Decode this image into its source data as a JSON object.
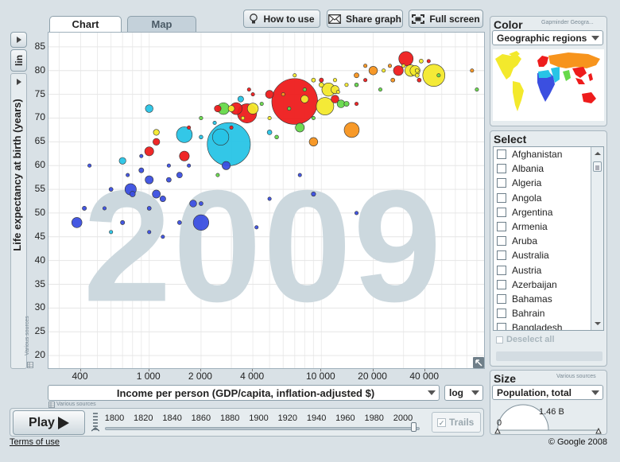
{
  "tabs": [
    {
      "label": "Chart",
      "active": true
    },
    {
      "label": "Map",
      "active": false
    }
  ],
  "toolbar": {
    "how_to_use": "How to use",
    "share_graph": "Share graph",
    "full_screen": "Full screen"
  },
  "y_scale_button": "lin",
  "x_scale_select": "log",
  "x_axis_select": "Income per person (GDP/capita, inflation-adjusted $)",
  "y_axis_label": "Life expectancy at birth (years)",
  "various_sources_y": "Various sources",
  "various_sources_x": "Various sources",
  "color_panel": {
    "title": "Color",
    "credit": "Gapminder Geogra...",
    "select": "Geographic regions",
    "region_colors": [
      "#3b4fe0",
      "#28c4e6",
      "#66d94a",
      "#f3e92c",
      "#f7941d",
      "#ee1c1c"
    ]
  },
  "select_panel": {
    "title": "Select",
    "countries": [
      "Afghanistan",
      "Albania",
      "Algeria",
      "Angola",
      "Argentina",
      "Armenia",
      "Aruba",
      "Australia",
      "Austria",
      "Azerbaijan",
      "Bahamas",
      "Bahrain",
      "Bangladesh"
    ],
    "deselect_all": "Deselect all"
  },
  "size_panel": {
    "title": "Size",
    "sources": "Various sources",
    "select": "Population, total",
    "gauge_min": "0",
    "gauge_max": "1.46 B"
  },
  "playback": {
    "play_label": "Play",
    "trails_label": "Trails",
    "year_labels": [
      "1800",
      "1820",
      "1840",
      "1860",
      "1880",
      "1900",
      "1920",
      "1940",
      "1960",
      "1980",
      "2000"
    ],
    "current_year": "2009"
  },
  "footer": {
    "terms": "Terms of use",
    "copyright": "© Google 2008"
  },
  "chart_data": {
    "type": "scatter",
    "year_watermark": "2009",
    "xlabel": "Income per person (GDP/capita, inflation-adjusted $)",
    "ylabel": "Life expectancy at birth (years)",
    "x_scale": "log",
    "xlim": [
      260,
      90000
    ],
    "ylim": [
      17,
      88
    ],
    "x_ticks": [
      400,
      1000,
      2000,
      4000,
      10000,
      20000,
      40000
    ],
    "x_tick_labels": [
      "400",
      "1 000",
      "2 000",
      "4 000",
      "10 000",
      "20 000",
      "40 000"
    ],
    "y_ticks": [
      20,
      25,
      30,
      35,
      40,
      45,
      50,
      55,
      60,
      65,
      70,
      75,
      80,
      85
    ],
    "points": [
      {
        "x": 7000,
        "y": 73.5,
        "pop": 1300,
        "color": "#ee1c1c"
      },
      {
        "x": 2900,
        "y": 64.5,
        "pop": 1150,
        "color": "#28c4e6"
      },
      {
        "x": 45000,
        "y": 79,
        "pop": 305,
        "color": "#f3e92c"
      },
      {
        "x": 3700,
        "y": 71,
        "pop": 230,
        "color": "#ee1c1c"
      },
      {
        "x": 10500,
        "y": 72.5,
        "pop": 190,
        "color": "#f3e92c"
      },
      {
        "x": 2600,
        "y": 66,
        "pop": 165,
        "color": "#28c4e6"
      },
      {
        "x": 2000,
        "y": 48,
        "pop": 150,
        "color": "#3b4fe0"
      },
      {
        "x": 1600,
        "y": 66.5,
        "pop": 155,
        "color": "#28c4e6"
      },
      {
        "x": 15000,
        "y": 67.5,
        "pop": 140,
        "color": "#f7941d"
      },
      {
        "x": 31000,
        "y": 82.5,
        "pop": 128,
        "color": "#ee1c1c"
      },
      {
        "x": 11000,
        "y": 76,
        "pop": 108,
        "color": "#f3e92c"
      },
      {
        "x": 3200,
        "y": 72,
        "pop": 88,
        "color": "#ee1c1c"
      },
      {
        "x": 1600,
        "y": 62,
        "pop": 60,
        "color": "#ee1c1c"
      },
      {
        "x": 780,
        "y": 55,
        "pop": 80,
        "color": "#3b4fe0"
      },
      {
        "x": 380,
        "y": 48,
        "pop": 65,
        "color": "#3b4fe0"
      },
      {
        "x": 2700,
        "y": 72,
        "pop": 86,
        "color": "#66d94a"
      },
      {
        "x": 33000,
        "y": 80,
        "pop": 82,
        "color": "#f3e92c"
      },
      {
        "x": 35000,
        "y": 80,
        "pop": 62,
        "color": "#f3e92c"
      },
      {
        "x": 9000,
        "y": 65,
        "pop": 45,
        "color": "#f7941d"
      },
      {
        "x": 1000,
        "y": 63,
        "pop": 50,
        "color": "#ee1c1c"
      },
      {
        "x": 4000,
        "y": 72,
        "pop": 74,
        "color": "#f3e92c"
      },
      {
        "x": 7500,
        "y": 68,
        "pop": 49,
        "color": "#66d94a"
      },
      {
        "x": 2800,
        "y": 60,
        "pop": 42,
        "color": "#3b4fe0"
      },
      {
        "x": 5000,
        "y": 75,
        "pop": 40,
        "color": "#ee1c1c"
      },
      {
        "x": 12000,
        "y": 76,
        "pop": 40,
        "color": "#f3e92c"
      },
      {
        "x": 1000,
        "y": 72,
        "pop": 37,
        "color": "#28c4e6"
      },
      {
        "x": 8000,
        "y": 74,
        "pop": 36,
        "color": "#f3e92c"
      },
      {
        "x": 12000,
        "y": 74,
        "pop": 38,
        "color": "#ee1c1c"
      },
      {
        "x": 1100,
        "y": 54,
        "pop": 40,
        "color": "#3b4fe0"
      },
      {
        "x": 1000,
        "y": 57,
        "pop": 41,
        "color": "#3b4fe0"
      },
      {
        "x": 1800,
        "y": 52,
        "pop": 30,
        "color": "#3b4fe0"
      },
      {
        "x": 1100,
        "y": 65,
        "pop": 29,
        "color": "#ee1c1c"
      },
      {
        "x": 700,
        "y": 61,
        "pop": 28,
        "color": "#28c4e6"
      },
      {
        "x": 28000,
        "y": 80,
        "pop": 60,
        "color": "#ee1c1c"
      },
      {
        "x": 20000,
        "y": 80,
        "pop": 45,
        "color": "#f7941d"
      },
      {
        "x": 13000,
        "y": 73,
        "pop": 38,
        "color": "#66d94a"
      },
      {
        "x": 2500,
        "y": 72,
        "pop": 28,
        "color": "#ee1c1c"
      },
      {
        "x": 3000,
        "y": 72,
        "pop": 25,
        "color": "#f3e92c"
      },
      {
        "x": 1100,
        "y": 67,
        "pop": 22,
        "color": "#f3e92c"
      },
      {
        "x": 3400,
        "y": 74,
        "pop": 21,
        "color": "#28c4e6"
      },
      {
        "x": 1200,
        "y": 53,
        "pop": 21,
        "color": "#3b4fe0"
      },
      {
        "x": 1500,
        "y": 58,
        "pop": 20,
        "color": "#3b4fe0"
      },
      {
        "x": 800,
        "y": 54,
        "pop": 19,
        "color": "#3b4fe0"
      },
      {
        "x": 900,
        "y": 59,
        "pop": 15,
        "color": "#3b4fe0"
      },
      {
        "x": 14000,
        "y": 73,
        "pop": 16,
        "color": "#66d94a"
      },
      {
        "x": 16000,
        "y": 79,
        "pop": 15,
        "color": "#f7941d"
      },
      {
        "x": 5000,
        "y": 67,
        "pop": 14,
        "color": "#28c4e6"
      },
      {
        "x": 10000,
        "y": 77,
        "pop": 14,
        "color": "#f3e92c"
      },
      {
        "x": 1300,
        "y": 57,
        "pop": 14,
        "color": "#3b4fe0"
      },
      {
        "x": 9000,
        "y": 54,
        "pop": 12,
        "color": "#3b4fe0"
      },
      {
        "x": 420,
        "y": 51,
        "pop": 11,
        "color": "#3b4fe0"
      },
      {
        "x": 2000,
        "y": 52,
        "pop": 10,
        "color": "#3b4fe0"
      },
      {
        "x": 37000,
        "y": 78,
        "pop": 10,
        "color": "#ee1c1c"
      },
      {
        "x": 38000,
        "y": 82,
        "pop": 10,
        "color": "#f3e92c"
      },
      {
        "x": 36000,
        "y": 80,
        "pop": 10,
        "color": "#f3e92c"
      },
      {
        "x": 36000,
        "y": 79,
        "pop": 10,
        "color": "#f3e92c"
      },
      {
        "x": 26000,
        "y": 78,
        "pop": 10,
        "color": "#f7941d"
      },
      {
        "x": 10000,
        "y": 78,
        "pop": 11,
        "color": "#ee1c1c"
      },
      {
        "x": 16000,
        "y": 77,
        "pop": 9,
        "color": "#66d94a"
      },
      {
        "x": 9000,
        "y": 78,
        "pop": 10,
        "color": "#f3e92c"
      },
      {
        "x": 5500,
        "y": 66,
        "pop": 9,
        "color": "#66d94a"
      },
      {
        "x": 700,
        "y": 48,
        "pop": 11,
        "color": "#3b4fe0"
      },
      {
        "x": 600,
        "y": 55,
        "pop": 10,
        "color": "#3b4fe0"
      },
      {
        "x": 1000,
        "y": 51,
        "pop": 10,
        "color": "#3b4fe0"
      },
      {
        "x": 1500,
        "y": 48,
        "pop": 10,
        "color": "#3b4fe0"
      },
      {
        "x": 4200,
        "y": 47,
        "pop": 5,
        "color": "#3b4fe0"
      },
      {
        "x": 2000,
        "y": 66,
        "pop": 9,
        "color": "#28c4e6"
      },
      {
        "x": 2000,
        "y": 70,
        "pop": 8,
        "color": "#66d94a"
      },
      {
        "x": 3500,
        "y": 70,
        "pop": 8,
        "color": "#f3e92c"
      },
      {
        "x": 4000,
        "y": 75,
        "pop": 7,
        "color": "#ee1c1c"
      },
      {
        "x": 7000,
        "y": 79,
        "pop": 7,
        "color": "#f3e92c"
      },
      {
        "x": 8000,
        "y": 76,
        "pop": 7,
        "color": "#66d94a"
      },
      {
        "x": 12000,
        "y": 78,
        "pop": 8,
        "color": "#f3e92c"
      },
      {
        "x": 18000,
        "y": 78,
        "pop": 7,
        "color": "#ee1c1c"
      },
      {
        "x": 22000,
        "y": 76,
        "pop": 6,
        "color": "#66d94a"
      },
      {
        "x": 23000,
        "y": 80,
        "pop": 6,
        "color": "#f3e92c"
      },
      {
        "x": 25000,
        "y": 81,
        "pop": 5,
        "color": "#f7941d"
      },
      {
        "x": 30000,
        "y": 81,
        "pop": 6,
        "color": "#f3e92c"
      },
      {
        "x": 42000,
        "y": 82,
        "pop": 6,
        "color": "#ee1c1c"
      },
      {
        "x": 48000,
        "y": 79,
        "pop": 5,
        "color": "#66d94a"
      },
      {
        "x": 75000,
        "y": 80,
        "pop": 1.5,
        "color": "#f7941d"
      },
      {
        "x": 80000,
        "y": 76,
        "pop": 1.2,
        "color": "#66d94a"
      },
      {
        "x": 14000,
        "y": 77,
        "pop": 5,
        "color": "#f3e92c"
      },
      {
        "x": 12500,
        "y": 75.5,
        "pop": 5,
        "color": "#f3e92c"
      },
      {
        "x": 6000,
        "y": 75,
        "pop": 5,
        "color": "#f7941d"
      },
      {
        "x": 6500,
        "y": 72,
        "pop": 5,
        "color": "#66d94a"
      },
      {
        "x": 5000,
        "y": 70,
        "pop": 5,
        "color": "#f3e92c"
      },
      {
        "x": 3000,
        "y": 68,
        "pop": 5,
        "color": "#ee1c1c"
      },
      {
        "x": 1700,
        "y": 68,
        "pop": 4,
        "color": "#ee1c1c"
      },
      {
        "x": 2400,
        "y": 69,
        "pop": 4,
        "color": "#28c4e6"
      },
      {
        "x": 1300,
        "y": 60,
        "pop": 4,
        "color": "#3b4fe0"
      },
      {
        "x": 450,
        "y": 60,
        "pop": 4,
        "color": "#3b4fe0"
      },
      {
        "x": 1000,
        "y": 46,
        "pop": 4,
        "color": "#3b4fe0"
      },
      {
        "x": 600,
        "y": 46,
        "pop": 4,
        "color": "#28c4e6"
      },
      {
        "x": 16000,
        "y": 50,
        "pop": 2,
        "color": "#3b4fe0"
      },
      {
        "x": 5000,
        "y": 53,
        "pop": 3,
        "color": "#3b4fe0"
      },
      {
        "x": 1700,
        "y": 60,
        "pop": 3,
        "color": "#3b4fe0"
      },
      {
        "x": 2500,
        "y": 58,
        "pop": 3,
        "color": "#66d94a"
      },
      {
        "x": 7500,
        "y": 58,
        "pop": 2,
        "color": "#3b4fe0"
      },
      {
        "x": 1200,
        "y": 45,
        "pop": 3,
        "color": "#3b4fe0"
      },
      {
        "x": 750,
        "y": 58,
        "pop": 3,
        "color": "#3b4fe0"
      },
      {
        "x": 18000,
        "y": 81,
        "pop": 3,
        "color": "#f7941d"
      },
      {
        "x": 16000,
        "y": 73,
        "pop": 3,
        "color": "#ee1c1c"
      },
      {
        "x": 9000,
        "y": 70,
        "pop": 3,
        "color": "#66d94a"
      },
      {
        "x": 4500,
        "y": 73,
        "pop": 3,
        "color": "#66d94a"
      },
      {
        "x": 3800,
        "y": 76,
        "pop": 3,
        "color": "#ee1c1c"
      },
      {
        "x": 900,
        "y": 62,
        "pop": 2,
        "color": "#3b4fe0"
      },
      {
        "x": 550,
        "y": 51,
        "pop": 2,
        "color": "#3b4fe0"
      }
    ]
  }
}
